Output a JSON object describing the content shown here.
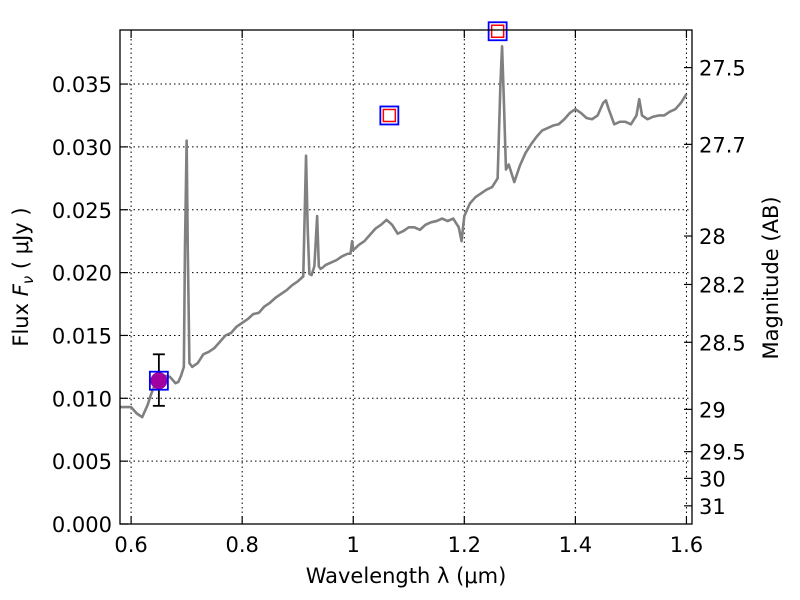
{
  "chart_data": {
    "type": "line",
    "xlabel": "Wavelength  λ (μm)",
    "ylabel_left": "Flux  F_ν  ( μJy )",
    "ylabel_right": "Magnitude (AB)",
    "xlim": [
      0.58,
      1.61
    ],
    "ylim": [
      0.0,
      0.0393
    ],
    "grid": true,
    "x_ticks": [
      "0.6",
      "0.8",
      "1",
      "1.2",
      "1.4",
      "1.6"
    ],
    "x_tick_values": [
      0.6,
      0.8,
      1.0,
      1.2,
      1.4,
      1.6
    ],
    "y_ticks": [
      "0.000",
      "0.005",
      "0.010",
      "0.015",
      "0.020",
      "0.025",
      "0.030",
      "0.035"
    ],
    "y_tick_values": [
      0.0,
      0.005,
      0.01,
      0.015,
      0.02,
      0.025,
      0.03,
      0.035
    ],
    "mag_ticks": [
      "27.5",
      "27.7",
      "28",
      "28.2",
      "28.5",
      "29",
      "29.5",
      "30",
      "31"
    ],
    "mag_tick_values": [
      27.5,
      27.7,
      28.0,
      28.2,
      28.5,
      29.0,
      29.5,
      30.0,
      31.0
    ],
    "series": [
      {
        "color": "#808080",
        "x": [
          0.58,
          0.6,
          0.61,
          0.62,
          0.63,
          0.635,
          0.64,
          0.65,
          0.66,
          0.67,
          0.68,
          0.685,
          0.69,
          0.695,
          0.697,
          0.7,
          0.702,
          0.705,
          0.71,
          0.72,
          0.73,
          0.74,
          0.75,
          0.76,
          0.77,
          0.78,
          0.79,
          0.8,
          0.81,
          0.82,
          0.83,
          0.84,
          0.85,
          0.86,
          0.87,
          0.88,
          0.89,
          0.9,
          0.91,
          0.915,
          0.918,
          0.921,
          0.925,
          0.93,
          0.935,
          0.938,
          0.941,
          0.945,
          0.95,
          0.96,
          0.97,
          0.98,
          0.99,
          0.995,
          0.998,
          1.0,
          1.003,
          1.01,
          1.02,
          1.03,
          1.04,
          1.05,
          1.06,
          1.07,
          1.08,
          1.09,
          1.1,
          1.11,
          1.12,
          1.13,
          1.14,
          1.15,
          1.16,
          1.17,
          1.18,
          1.19,
          1.195,
          1.2,
          1.21,
          1.22,
          1.23,
          1.24,
          1.25,
          1.26,
          1.265,
          1.268,
          1.271,
          1.275,
          1.28,
          1.29,
          1.3,
          1.31,
          1.32,
          1.33,
          1.34,
          1.35,
          1.36,
          1.37,
          1.38,
          1.39,
          1.4,
          1.41,
          1.42,
          1.43,
          1.44,
          1.45,
          1.455,
          1.46,
          1.47,
          1.48,
          1.49,
          1.5,
          1.51,
          1.515,
          1.52,
          1.53,
          1.54,
          1.55,
          1.56,
          1.57,
          1.58,
          1.59,
          1.6
        ],
        "values": [
          0.0093,
          0.0093,
          0.0088,
          0.0085,
          0.0095,
          0.0102,
          0.0108,
          0.0114,
          0.0118,
          0.0117,
          0.0112,
          0.0113,
          0.0118,
          0.0125,
          0.022,
          0.0305,
          0.022,
          0.0128,
          0.0125,
          0.0128,
          0.0135,
          0.0137,
          0.014,
          0.0145,
          0.015,
          0.0152,
          0.0157,
          0.016,
          0.0163,
          0.0167,
          0.0168,
          0.0173,
          0.0176,
          0.018,
          0.0183,
          0.0186,
          0.019,
          0.0193,
          0.0197,
          0.0293,
          0.0235,
          0.0199,
          0.0198,
          0.0205,
          0.0245,
          0.0205,
          0.0203,
          0.0204,
          0.0206,
          0.0208,
          0.021,
          0.0213,
          0.0215,
          0.0215,
          0.0225,
          0.0218,
          0.0219,
          0.0222,
          0.0225,
          0.023,
          0.0235,
          0.0238,
          0.0242,
          0.0238,
          0.0231,
          0.0233,
          0.0236,
          0.0236,
          0.0234,
          0.0238,
          0.024,
          0.0241,
          0.0243,
          0.0241,
          0.0243,
          0.0236,
          0.0225,
          0.0245,
          0.0255,
          0.026,
          0.0263,
          0.0266,
          0.0268,
          0.0275,
          0.035,
          0.038,
          0.034,
          0.0282,
          0.0286,
          0.0272,
          0.0285,
          0.0295,
          0.0302,
          0.0308,
          0.0313,
          0.0315,
          0.0317,
          0.0318,
          0.0322,
          0.0327,
          0.033,
          0.0327,
          0.0323,
          0.0322,
          0.0325,
          0.0335,
          0.0337,
          0.033,
          0.0318,
          0.032,
          0.032,
          0.0318,
          0.0325,
          0.0338,
          0.0325,
          0.0322,
          0.0324,
          0.0325,
          0.0325,
          0.0328,
          0.033,
          0.0335,
          0.0342
        ]
      }
    ],
    "points": [
      {
        "x": 0.65,
        "y": 0.0114,
        "marker": "filled-circle",
        "color": "#a000a0"
      },
      {
        "x": 0.65,
        "y": 0.0114,
        "marker": "open-square",
        "color": "#0000ff"
      },
      {
        "x": 1.065,
        "y": 0.0325,
        "marker": "open-square",
        "color": "#0000ff"
      },
      {
        "x": 1.065,
        "y": 0.0325,
        "marker": "open-square-small",
        "color": "#ff0000"
      },
      {
        "x": 1.26,
        "y": 0.0392,
        "marker": "open-square",
        "color": "#0000ff"
      },
      {
        "x": 1.26,
        "y": 0.0392,
        "marker": "open-square-small",
        "color": "#ff0000"
      }
    ],
    "errorbars": [
      {
        "x": 0.65,
        "y": 0.0114,
        "ylow": 0.0094,
        "yhigh": 0.0135,
        "color": "#000000"
      }
    ]
  }
}
